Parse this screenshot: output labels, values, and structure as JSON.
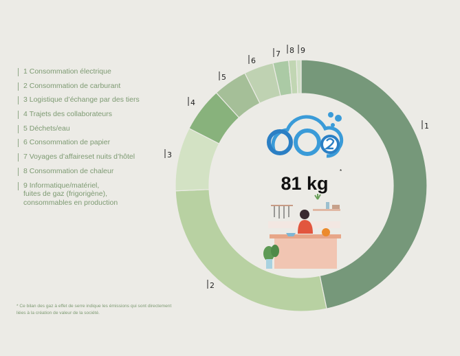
{
  "chart_data": {
    "type": "pie",
    "variant": "donut",
    "categories": [
      "1",
      "2",
      "3",
      "4",
      "5",
      "6",
      "7",
      "8",
      "9"
    ],
    "legend": [
      "1 Consommation électrique",
      "2 Consommation de carburant",
      "3 Logistique d’échange par des tiers",
      "4 Trajets des collaborateurs",
      "5 Déchets/eau",
      "6 Consommation de papier",
      "7 Voyages d’affaireset nuits d’hôtel",
      "8 Consommation de chaleur",
      "9 Informatique/matériel,\nfuites de gaz (frigorigène),\nconsommables en production"
    ],
    "values": [
      46.8,
      27.6,
      8.2,
      5.7,
      4.4,
      3.8,
      2.0,
      1.0,
      0.6
    ],
    "colors": [
      "#76987a",
      "#b8d1a2",
      "#d3e2c4",
      "#88b27c",
      "#a5bf98",
      "#bfd2b2",
      "#abcaa5",
      "#c1d6b3",
      "#d1e0c7"
    ],
    "legend_placement": "left",
    "center_value": "81 kg",
    "center_marker": "*",
    "center_logo": "CO2",
    "footnote": "* Ce bilan des gaz à effet de serre indique les émissions qui sont directement\n   liées à la création de valeur de la société."
  }
}
